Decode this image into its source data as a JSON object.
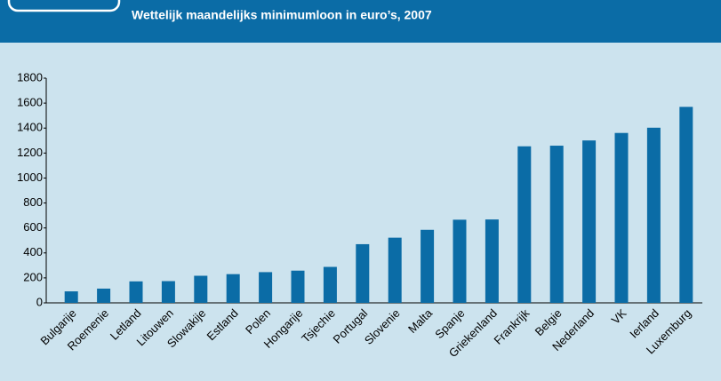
{
  "chart_data": {
    "type": "bar",
    "title": "Wettelijk maandelijks minimumloon in euro’s, 2007",
    "categories": [
      "Bulgarije",
      "Roemenie",
      "Letland",
      "Litouwen",
      "Slowakije",
      "Estland",
      "Polen",
      "Hongarije",
      "Tsjechie",
      "Portugal",
      "Slovenie",
      "Malta",
      "Spanje",
      "Griekenland",
      "Frankrijk",
      "Belgie",
      "Nederland",
      "VK",
      "Ierland",
      "Luxemburg"
    ],
    "values": [
      92,
      114,
      172,
      174,
      217,
      230,
      246,
      258,
      288,
      470,
      522,
      585,
      666,
      668,
      1254,
      1259,
      1301,
      1361,
      1403,
      1570
    ],
    "color": "#0b6ca6",
    "ylim": [
      0,
      1800
    ],
    "yticks": [
      0,
      200,
      400,
      600,
      800,
      1000,
      1200,
      1400,
      1600,
      1800
    ],
    "grid": false
  }
}
